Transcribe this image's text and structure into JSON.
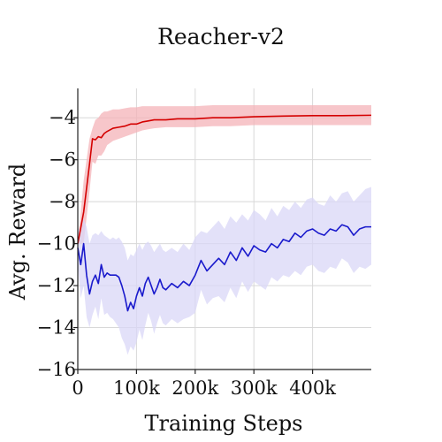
{
  "chart_data": {
    "type": "line",
    "title": "Reacher-v2",
    "xlabel": "Training Steps",
    "ylabel": "Avg. Reward",
    "xlim": [
      0,
      500000
    ],
    "ylim": [
      -16,
      -2.6
    ],
    "x_ticks": [
      {
        "value": 0,
        "label": "0"
      },
      {
        "value": 100000,
        "label": "100k"
      },
      {
        "value": 200000,
        "label": "200k"
      },
      {
        "value": 300000,
        "label": "300k"
      },
      {
        "value": 400000,
        "label": "400k"
      }
    ],
    "y_ticks": [
      {
        "value": -4,
        "label": "−4"
      },
      {
        "value": -6,
        "label": "−6"
      },
      {
        "value": -8,
        "label": "−8"
      },
      {
        "value": -10,
        "label": "−10"
      },
      {
        "value": -12,
        "label": "−12"
      },
      {
        "value": -14,
        "label": "−14"
      },
      {
        "value": -16,
        "label": "−16"
      }
    ],
    "grid": true,
    "legend": "none",
    "series": [
      {
        "color": "#d40000",
        "band_color": "#f4b3b8",
        "x": [
          0,
          10000,
          20000,
          25000,
          30000,
          35000,
          40000,
          45000,
          50000,
          60000,
          70000,
          80000,
          90000,
          100000,
          110000,
          120000,
          130000,
          150000,
          170000,
          200000,
          230000,
          260000,
          300000,
          350000,
          400000,
          450000,
          500000
        ],
        "y": [
          -10.0,
          -8.5,
          -6.2,
          -5.0,
          -5.05,
          -4.9,
          -4.95,
          -4.75,
          -4.65,
          -4.5,
          -4.45,
          -4.4,
          -4.3,
          -4.3,
          -4.2,
          -4.15,
          -4.1,
          -4.1,
          -4.05,
          -4.05,
          -4.0,
          -4.0,
          -3.95,
          -3.92,
          -3.9,
          -3.9,
          -3.88
        ],
        "upper": [
          -10.0,
          -7.0,
          -5.0,
          -4.5,
          -4.1,
          -4.0,
          -3.8,
          -3.7,
          -3.7,
          -3.6,
          -3.6,
          -3.55,
          -3.5,
          -3.5,
          -3.45,
          -3.45,
          -3.45,
          -3.45,
          -3.45,
          -3.45,
          -3.4,
          -3.4,
          -3.4,
          -3.4,
          -3.4,
          -3.4,
          -3.4
        ],
        "lower": [
          -10.0,
          -10.0,
          -7.5,
          -6.1,
          -6.2,
          -5.8,
          -5.8,
          -5.6,
          -5.3,
          -5.1,
          -5.0,
          -4.9,
          -4.8,
          -4.7,
          -4.6,
          -4.55,
          -4.5,
          -4.45,
          -4.45,
          -4.45,
          -4.4,
          -4.4,
          -4.35,
          -4.35,
          -4.35,
          -4.35,
          -4.35
        ]
      },
      {
        "color": "#1a1acc",
        "band_color": "#d9d7f7",
        "x": [
          0,
          5000,
          10000,
          15000,
          20000,
          25000,
          30000,
          35000,
          40000,
          45000,
          50000,
          55000,
          60000,
          65000,
          70000,
          75000,
          80000,
          85000,
          90000,
          95000,
          100000,
          105000,
          110000,
          115000,
          120000,
          125000,
          130000,
          135000,
          140000,
          145000,
          150000,
          160000,
          170000,
          180000,
          190000,
          200000,
          210000,
          220000,
          230000,
          240000,
          250000,
          260000,
          270000,
          280000,
          290000,
          300000,
          310000,
          320000,
          330000,
          340000,
          350000,
          360000,
          370000,
          380000,
          390000,
          400000,
          410000,
          420000,
          430000,
          440000,
          450000,
          460000,
          470000,
          480000,
          490000,
          500000
        ],
        "y": [
          -10.2,
          -11.0,
          -10.0,
          -11.5,
          -12.4,
          -11.8,
          -11.5,
          -11.9,
          -11.0,
          -11.6,
          -11.4,
          -11.5,
          -11.5,
          -11.5,
          -11.6,
          -12.0,
          -12.5,
          -13.2,
          -12.8,
          -13.1,
          -12.5,
          -12.1,
          -12.5,
          -11.9,
          -11.6,
          -12.0,
          -12.4,
          -12.1,
          -11.7,
          -12.1,
          -12.2,
          -11.9,
          -12.1,
          -11.8,
          -12.0,
          -11.5,
          -10.8,
          -11.3,
          -11.0,
          -10.7,
          -11.0,
          -10.4,
          -10.8,
          -10.2,
          -10.6,
          -10.1,
          -10.3,
          -10.4,
          -10.0,
          -10.2,
          -9.8,
          -9.9,
          -9.5,
          -9.7,
          -9.4,
          -9.3,
          -9.5,
          -9.6,
          -9.3,
          -9.4,
          -9.1,
          -9.2,
          -9.6,
          -9.3,
          -9.2,
          -9.2
        ],
        "upper": [
          -9.2,
          -9.5,
          -8.8,
          -9.2,
          -10.0,
          -9.6,
          -9.5,
          -9.6,
          -9.4,
          -9.6,
          -9.7,
          -9.8,
          -9.7,
          -9.8,
          -9.7,
          -9.9,
          -10.2,
          -10.8,
          -10.5,
          -10.6,
          -10.3,
          -10.0,
          -10.3,
          -10.0,
          -9.9,
          -10.1,
          -10.4,
          -10.2,
          -10.0,
          -10.3,
          -10.4,
          -10.2,
          -10.4,
          -10.0,
          -10.3,
          -9.7,
          -9.4,
          -9.5,
          -9.2,
          -8.9,
          -9.3,
          -8.7,
          -9.0,
          -8.6,
          -8.9,
          -8.4,
          -8.6,
          -8.9,
          -8.3,
          -8.7,
          -8.2,
          -8.4,
          -8.0,
          -8.3,
          -7.9,
          -7.8,
          -8.1,
          -8.2,
          -7.7,
          -8.0,
          -7.6,
          -7.5,
          -8.0,
          -7.7,
          -7.4,
          -7.3
        ],
        "lower": [
          -11.0,
          -12.6,
          -12.0,
          -13.5,
          -14.0,
          -13.4,
          -13.0,
          -13.6,
          -12.6,
          -13.4,
          -13.3,
          -13.5,
          -13.6,
          -13.8,
          -14.0,
          -14.5,
          -14.8,
          -15.3,
          -14.9,
          -15.1,
          -14.7,
          -14.1,
          -14.6,
          -13.9,
          -13.3,
          -13.7,
          -14.3,
          -13.8,
          -13.4,
          -13.8,
          -13.9,
          -13.6,
          -13.8,
          -13.6,
          -13.5,
          -13.3,
          -12.2,
          -12.9,
          -12.6,
          -12.5,
          -12.8,
          -12.1,
          -12.6,
          -11.8,
          -12.3,
          -11.8,
          -12.0,
          -12.2,
          -11.6,
          -11.8,
          -11.5,
          -11.6,
          -11.3,
          -11.5,
          -11.1,
          -11.0,
          -11.3,
          -11.4,
          -11.1,
          -11.2,
          -10.7,
          -10.9,
          -11.4,
          -11.1,
          -11.2,
          -11.0
        ]
      }
    ]
  }
}
